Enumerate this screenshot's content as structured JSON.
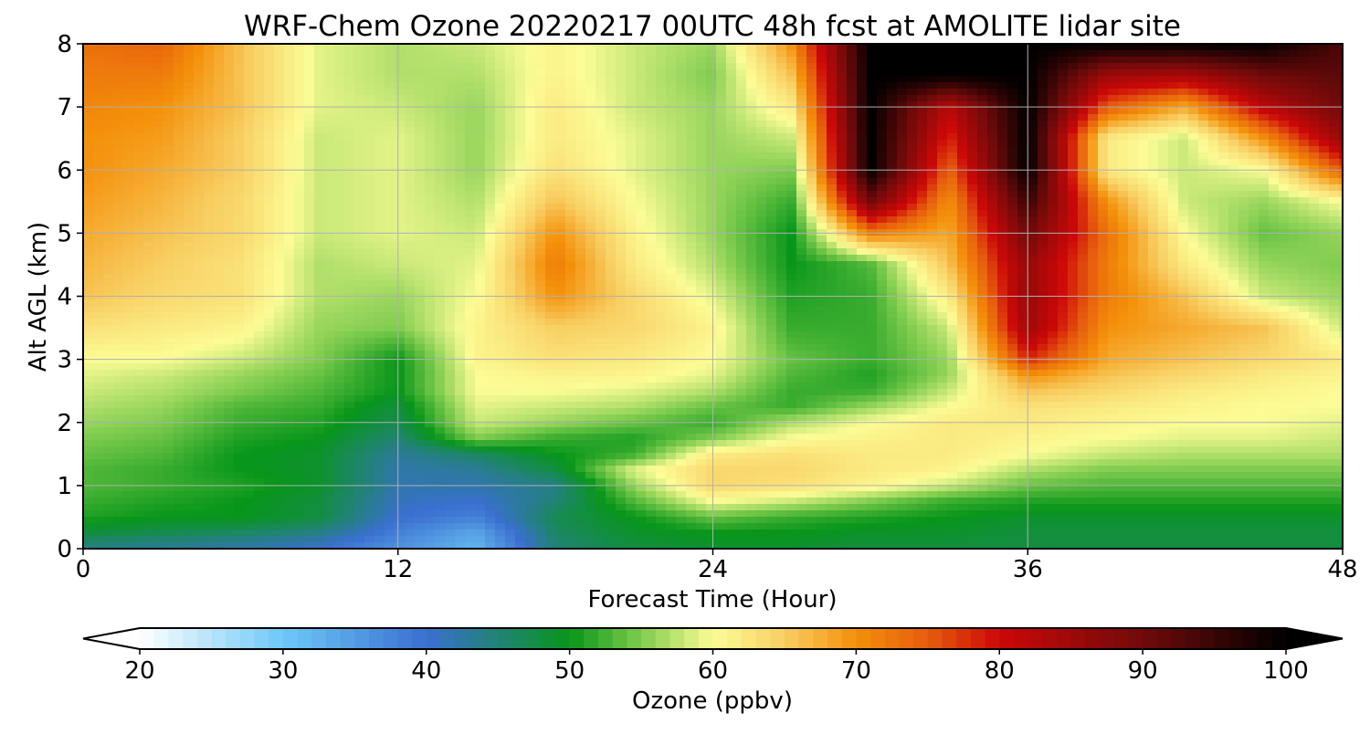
{
  "chart_data": {
    "type": "heatmap",
    "title": "WRF-Chem Ozone  20220217 00UTC 48h fcst at AMOLITE lidar site",
    "xlabel": "Forecast Time (Hour)",
    "ylabel": "Alt AGL (km)",
    "xlim": [
      0,
      48
    ],
    "ylim": [
      0,
      8
    ],
    "xticks": [
      0,
      12,
      24,
      36,
      48
    ],
    "xtick_labels": [
      "0",
      "12",
      "24",
      "36",
      "48"
    ],
    "yticks": [
      0,
      1,
      2,
      3,
      4,
      5,
      6,
      7,
      8
    ],
    "ytick_labels": [
      "0",
      "1",
      "2",
      "3",
      "4",
      "5",
      "6",
      "7",
      "8"
    ],
    "grid": true,
    "colorbar": {
      "label": "Ozone  (ppbv)",
      "orientation": "horizontal",
      "extend": "both",
      "min": 20,
      "max": 100,
      "ticks": [
        20,
        30,
        40,
        50,
        60,
        70,
        80,
        90,
        100
      ],
      "tick_labels": [
        "20",
        "30",
        "40",
        "50",
        "60",
        "70",
        "80",
        "90",
        "100"
      ],
      "colors": [
        {
          "v": 20,
          "c": "#ffffff"
        },
        {
          "v": 30,
          "c": "#6ec8f7"
        },
        {
          "v": 40,
          "c": "#3a6fd0"
        },
        {
          "v": 50,
          "c": "#08961a"
        },
        {
          "v": 55,
          "c": "#7fcc4e"
        },
        {
          "v": 60,
          "c": "#fcfc96"
        },
        {
          "v": 65,
          "c": "#f8cf63"
        },
        {
          "v": 70,
          "c": "#f4900a"
        },
        {
          "v": 75,
          "c": "#e65c0e"
        },
        {
          "v": 80,
          "c": "#cc0808"
        },
        {
          "v": 90,
          "c": "#700a0a"
        },
        {
          "v": 100,
          "c": "#000000"
        }
      ]
    },
    "x": [
      0,
      3,
      6,
      9,
      12,
      15,
      18,
      21,
      24,
      27,
      30,
      33,
      36,
      39,
      42,
      45,
      48
    ],
    "y": [
      0,
      0.25,
      0.5,
      0.75,
      1,
      1.25,
      1.5,
      1.75,
      2,
      2.25,
      2.5,
      2.75,
      3,
      3.5,
      4,
      4.5,
      5,
      5.5,
      6,
      6.5,
      7,
      7.5,
      8
    ],
    "z": [
      [
        44,
        43,
        42,
        40,
        36,
        32,
        45,
        48,
        49,
        49,
        48,
        48,
        48,
        48,
        48,
        48,
        48
      ],
      [
        48,
        47,
        46,
        44,
        38,
        34,
        46,
        49,
        50,
        50,
        49,
        49,
        48,
        48,
        48,
        48,
        48
      ],
      [
        51,
        50,
        50,
        48,
        40,
        38,
        47,
        50,
        54,
        52,
        51,
        50,
        49,
        49,
        49,
        49,
        49
      ],
      [
        52,
        51,
        50,
        48,
        41,
        40,
        45,
        53,
        60,
        58,
        55,
        52,
        51,
        51,
        51,
        51,
        51
      ],
      [
        53,
        52,
        51,
        49,
        42,
        42,
        44,
        56,
        64,
        63,
        61,
        58,
        54,
        53,
        53,
        53,
        53
      ],
      [
        53,
        52,
        50,
        49,
        42,
        43,
        48,
        59,
        64,
        64,
        62,
        61,
        57,
        55,
        55,
        55,
        55
      ],
      [
        54,
        53,
        50,
        49,
        43,
        46,
        50,
        52,
        62,
        63,
        62,
        62,
        60,
        58,
        57,
        57,
        57
      ],
      [
        55,
        54,
        51,
        50,
        45,
        55,
        52,
        51,
        55,
        60,
        61,
        62,
        61,
        60,
        59,
        59,
        58
      ],
      [
        56,
        55,
        52,
        51,
        47,
        58,
        56,
        54,
        52,
        57,
        60,
        62,
        62,
        61,
        60,
        60,
        59
      ],
      [
        57,
        56,
        53,
        52,
        48,
        59,
        58,
        57,
        54,
        52,
        56,
        60,
        63,
        62,
        61,
        60,
        60
      ],
      [
        58,
        57,
        55,
        53,
        50,
        60,
        60,
        59,
        57,
        52,
        52,
        58,
        66,
        64,
        62,
        61,
        60
      ],
      [
        59,
        58,
        56,
        54,
        50,
        60,
        61,
        61,
        59,
        53,
        51,
        56,
        70,
        66,
        64,
        62,
        61
      ],
      [
        60,
        60,
        58,
        55,
        50,
        61,
        63,
        62,
        60,
        54,
        52,
        56,
        78,
        68,
        66,
        64,
        62
      ],
      [
        63,
        62,
        61,
        56,
        55,
        61,
        65,
        64,
        61,
        52,
        52,
        58,
        85,
        70,
        68,
        66,
        58
      ],
      [
        66,
        64,
        63,
        57,
        56,
        60,
        70,
        64,
        59,
        51,
        52,
        62,
        86,
        72,
        66,
        58,
        56
      ],
      [
        67,
        65,
        63,
        57,
        58,
        59,
        72,
        62,
        57,
        50,
        53,
        66,
        86,
        72,
        62,
        56,
        55
      ],
      [
        68,
        66,
        64,
        58,
        59,
        58,
        70,
        61,
        56,
        50,
        72,
        68,
        90,
        73,
        60,
        54,
        56
      ],
      [
        69,
        67,
        64,
        58,
        59,
        57,
        66,
        60,
        56,
        52,
        90,
        70,
        95,
        70,
        58,
        56,
        60
      ],
      [
        70,
        68,
        65,
        58,
        59,
        56,
        63,
        59,
        56,
        55,
        100,
        74,
        100,
        62,
        58,
        60,
        75
      ],
      [
        70,
        69,
        65,
        58,
        59,
        56,
        62,
        59,
        56,
        58,
        100,
        78,
        100,
        62,
        58,
        70,
        86
      ],
      [
        71,
        70,
        66,
        59,
        58,
        56,
        62,
        58,
        56,
        62,
        100,
        82,
        100,
        75,
        68,
        82,
        90
      ],
      [
        72,
        72,
        66,
        59,
        57,
        57,
        61,
        58,
        55,
        66,
        100,
        100,
        100,
        85,
        84,
        90,
        92
      ],
      [
        73,
        74,
        66,
        59,
        57,
        58,
        61,
        58,
        56,
        70,
        100,
        100,
        100,
        100,
        100,
        100,
        93
      ]
    ]
  }
}
